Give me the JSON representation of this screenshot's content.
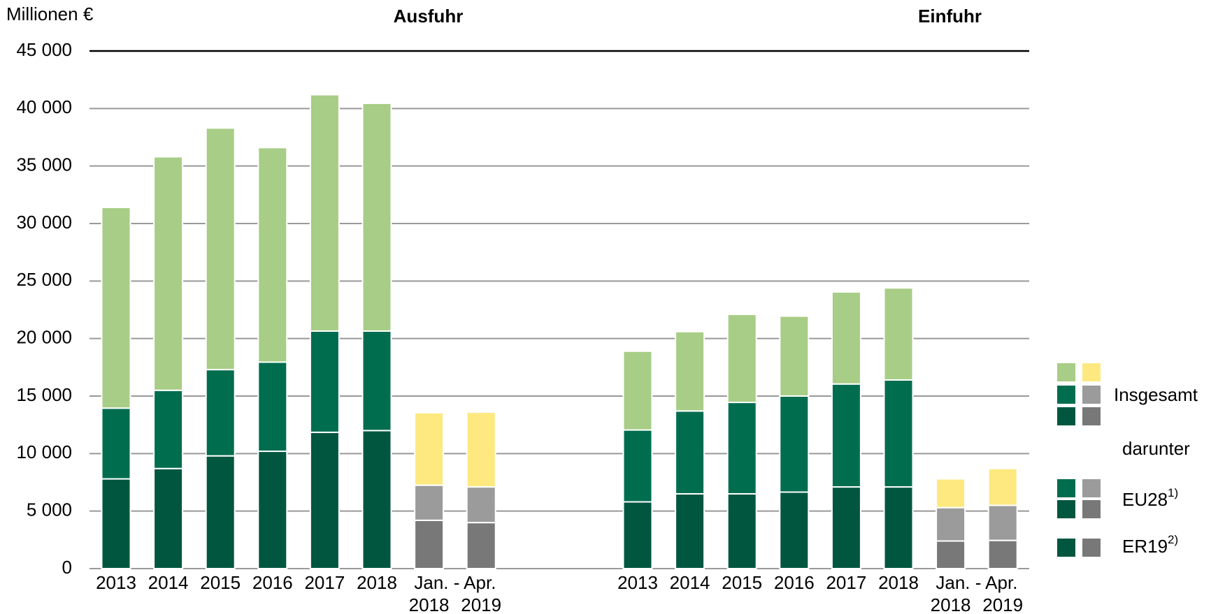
{
  "chart_data": {
    "type": "bar",
    "stacked": true,
    "unit_label": "Millionen €",
    "categories": [
      "2013",
      "2014",
      "2015",
      "2016",
      "2017",
      "2018",
      "2018",
      "2019"
    ],
    "period_label": "Jan. - Apr.",
    "period_start": 6,
    "ylim": [
      0,
      45000
    ],
    "yticks": [
      0,
      {
        "value": 5000,
        "label": "5 000"
      },
      {
        "value": 10000,
        "label": "10 000"
      },
      {
        "value": 15000,
        "label": "15 000"
      },
      {
        "value": 20000,
        "label": "20 000"
      },
      {
        "value": 25000,
        "label": "25 000"
      },
      {
        "value": 30000,
        "label": "30 000"
      },
      {
        "value": 35000,
        "label": "35 000"
      },
      {
        "value": 40000,
        "label": "40 000"
      },
      {
        "value": 45000,
        "label": "45 000"
      }
    ],
    "grid": true,
    "groups": [
      {
        "title": "Ausfuhr",
        "series": [
          {
            "name": "ER19",
            "color": "#00563f",
            "period_color": "#787878",
            "values": [
              7800,
              8700,
              9800,
              10200,
              11850,
              12000,
              4200,
              4000
            ]
          },
          {
            "name": "EU28",
            "color": "#006d4e",
            "period_color": "#9b9b9b",
            "values": [
              6150,
              6800,
              7500,
              7750,
              8800,
              8650,
              3050,
              3100
            ]
          },
          {
            "name": "Insgesamt",
            "color": "#a8cd86",
            "period_color": "#fde97f",
            "values": [
              17450,
              20300,
              21000,
              18650,
              20550,
              19800,
              6300,
              6500
            ]
          }
        ]
      },
      {
        "title": "Einfuhr",
        "series": [
          {
            "name": "ER19",
            "color": "#00563f",
            "period_color": "#787878",
            "values": [
              5800,
              6500,
              6500,
              6650,
              7100,
              7100,
              2400,
              2450
            ]
          },
          {
            "name": "EU28",
            "color": "#006d4e",
            "period_color": "#9b9b9b",
            "values": [
              6250,
              7200,
              7950,
              8350,
              8950,
              9300,
              2900,
              3050
            ]
          },
          {
            "name": "Insgesamt",
            "color": "#a8cd86",
            "period_color": "#fde97f",
            "values": [
              6850,
              6900,
              7650,
              6950,
              8000,
              8000,
              2500,
              3200
            ]
          }
        ]
      }
    ],
    "legend": {
      "among": "darunter",
      "eu_note": "1)",
      "er_note": "2)"
    }
  }
}
